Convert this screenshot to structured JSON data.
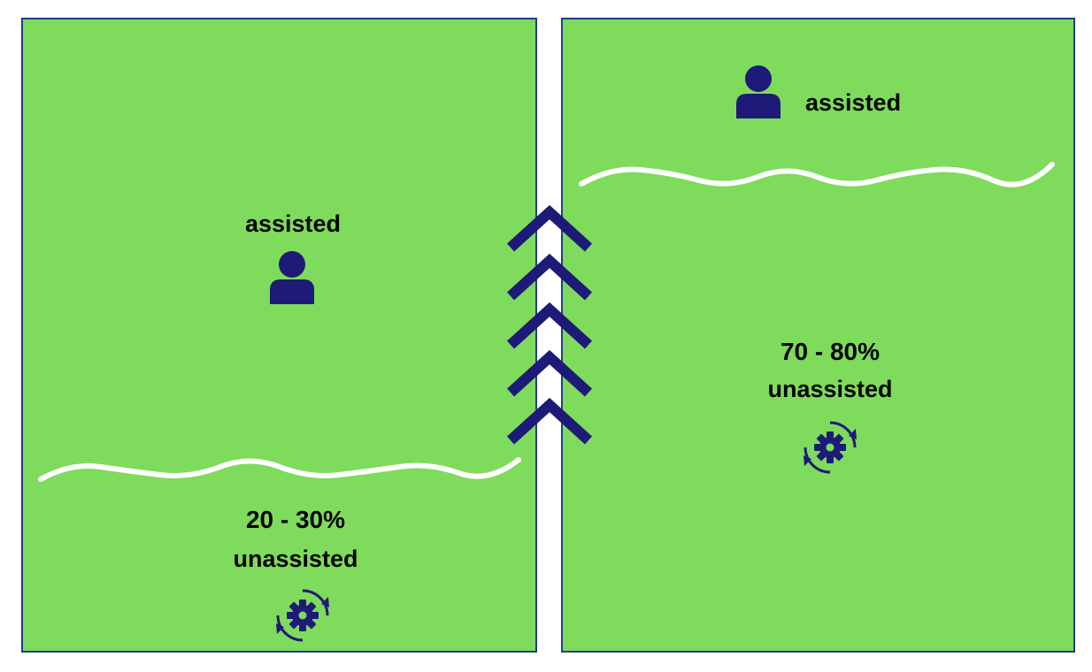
{
  "colors": {
    "panel_fill": "#7fdb5b",
    "panel_border": "#1f3d8f",
    "icon": "#1d1a78",
    "wave": "#ffffff",
    "chevron": "#1d1a78",
    "text": "#000000"
  },
  "left_panel": {
    "assisted_label": "assisted",
    "assisted_icon": "person-icon",
    "percent": "20 - 30%",
    "unassisted_label": "unassisted",
    "unassisted_icon": "gear-cycle-icon"
  },
  "right_panel": {
    "assisted_label": "assisted",
    "assisted_icon": "person-icon",
    "percent": "70 - 80%",
    "unassisted_label": "unassisted",
    "unassisted_icon": "gear-cycle-icon"
  },
  "transition": {
    "icon": "chevron-up-icon",
    "count": 5
  }
}
